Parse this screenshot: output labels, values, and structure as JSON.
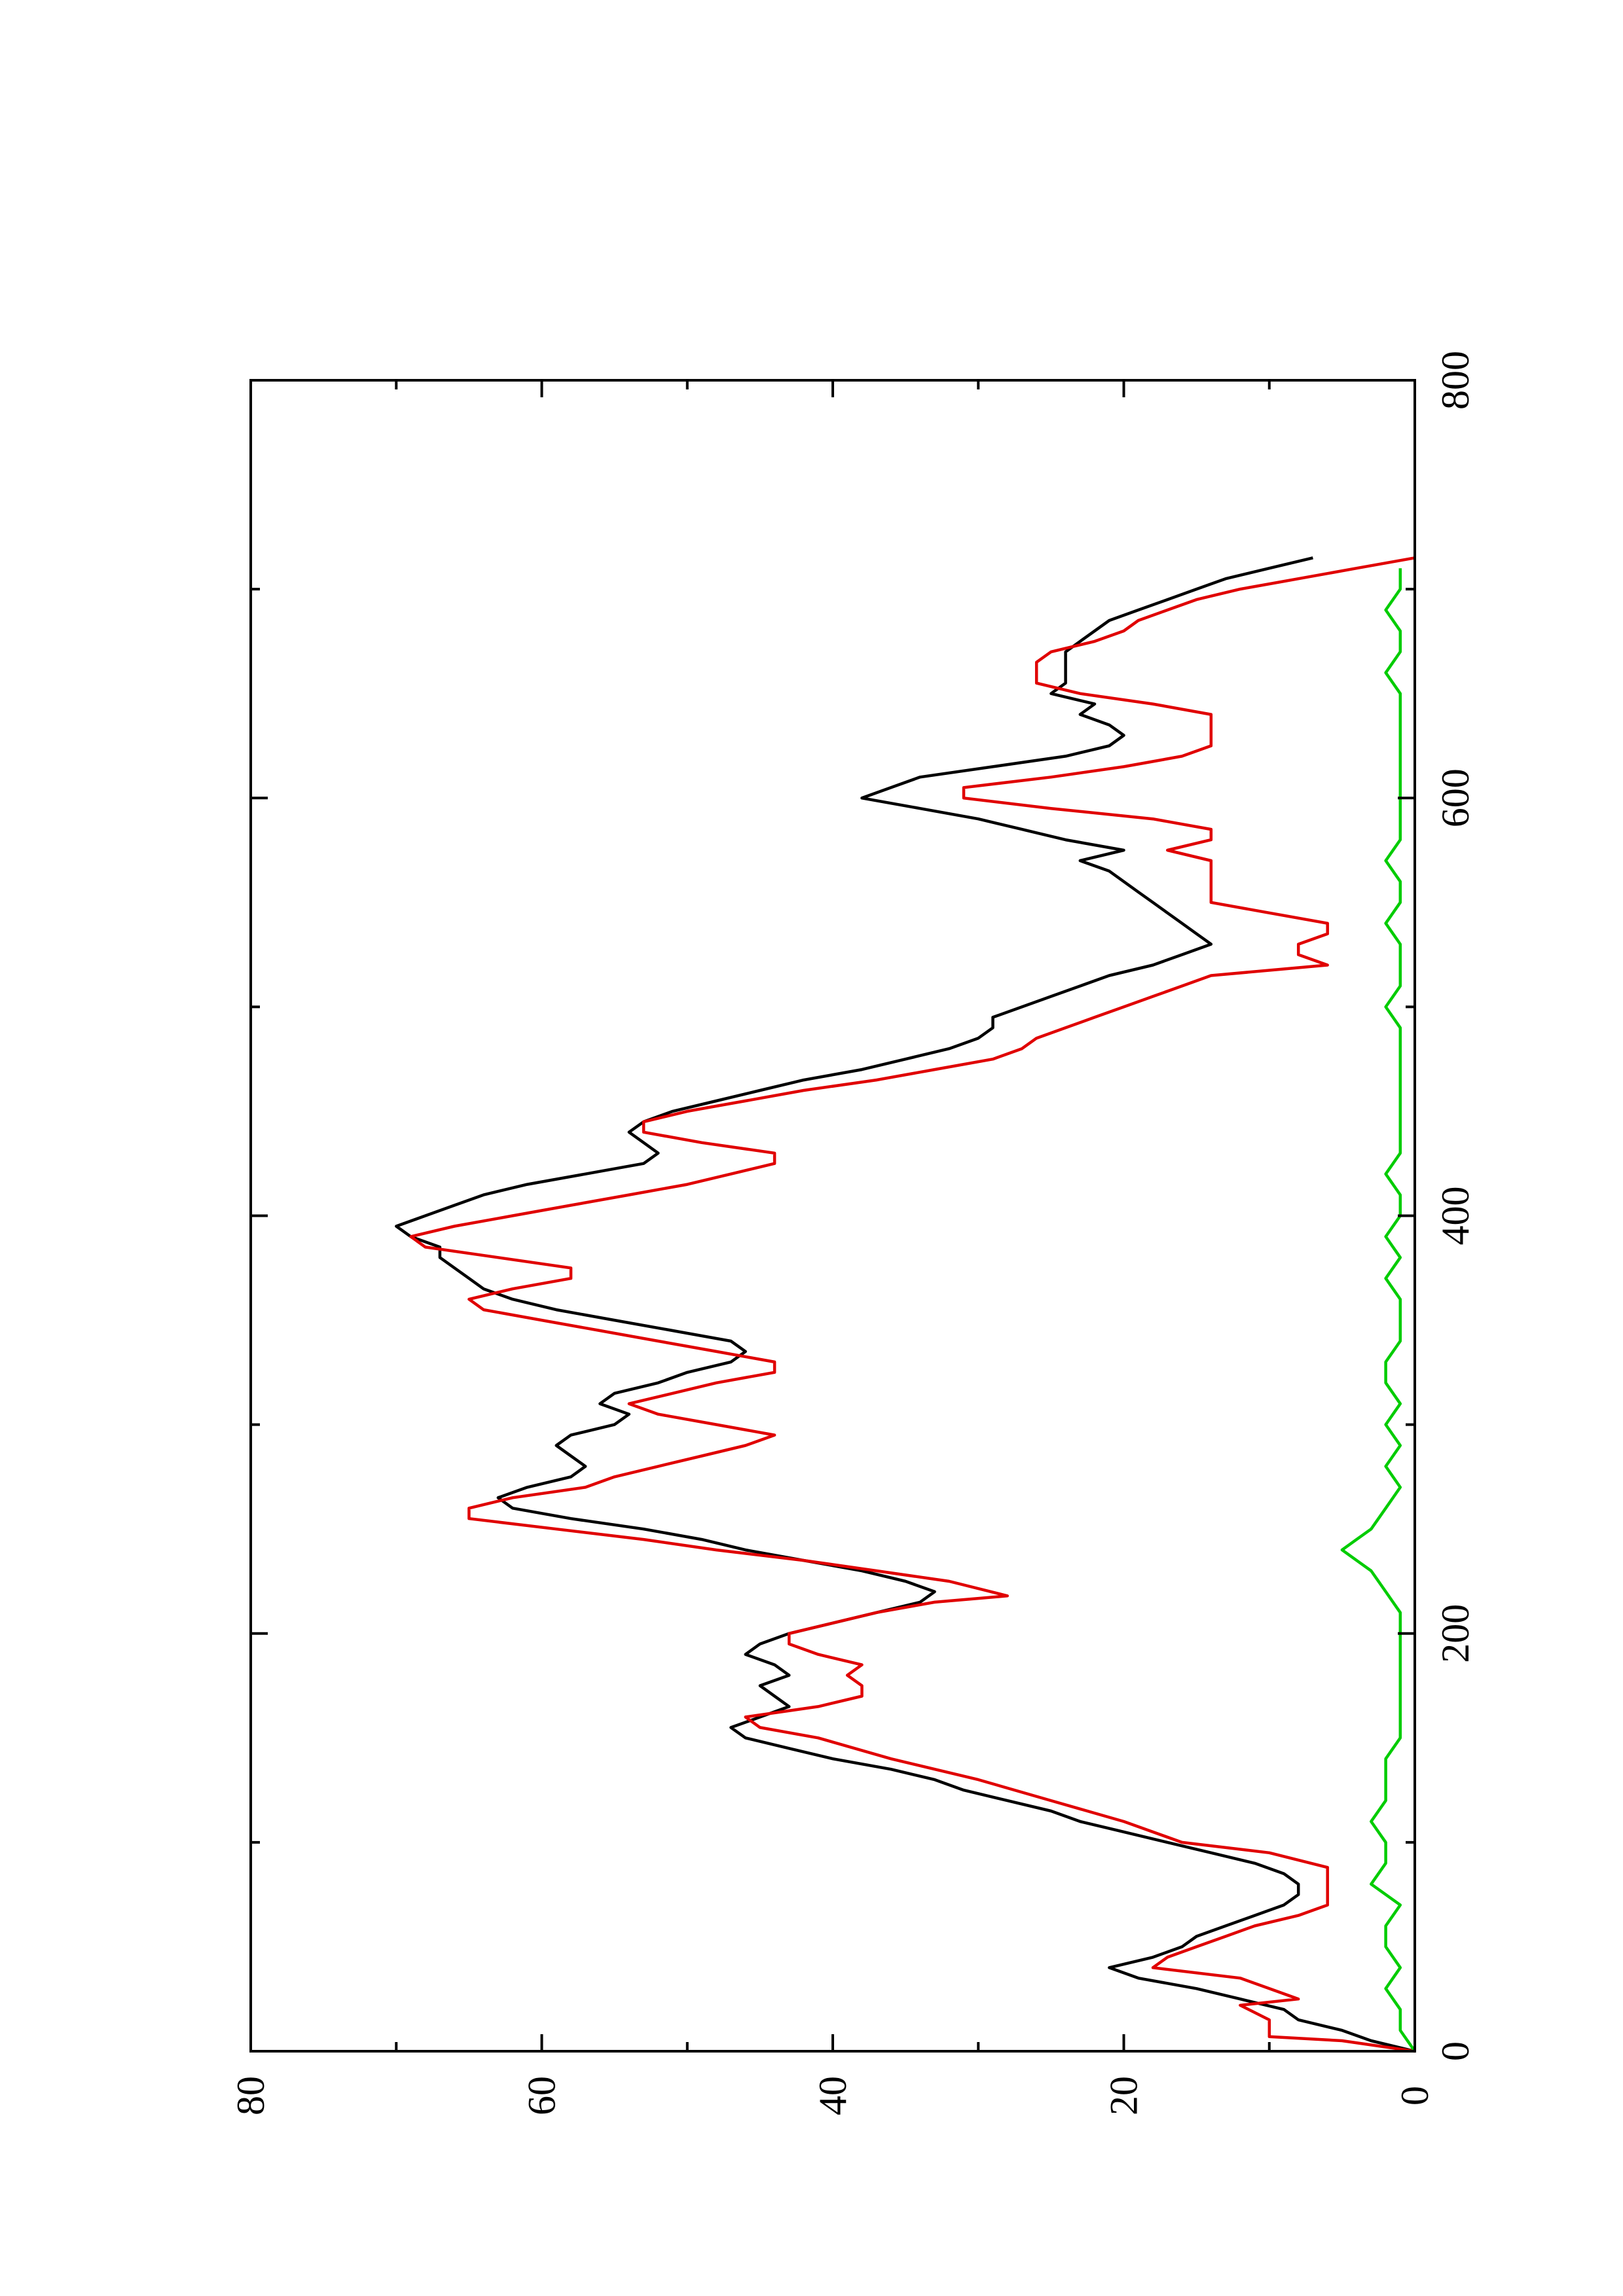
{
  "chart_data": {
    "type": "line",
    "orientation": "rotated-90-counterclockwise",
    "title": "",
    "xlabel": "",
    "ylabel": "",
    "xlim": [
      0,
      800
    ],
    "ylim": [
      0,
      80
    ],
    "x_ticks": [
      0,
      200,
      400,
      600,
      800
    ],
    "x_minor_ticks": [
      100,
      300,
      500,
      700
    ],
    "y_ticks": [
      0,
      20,
      40,
      60,
      80
    ],
    "y_minor_ticks": [
      10,
      30,
      50,
      70
    ],
    "x_tick_labels": [
      "0",
      "200",
      "400",
      "600",
      "800"
    ],
    "y_tick_labels": [
      "0",
      "20",
      "40",
      "60",
      "80"
    ],
    "grid": false,
    "legend": "none",
    "series": [
      {
        "color": "#000000",
        "x": [
          0,
          5,
          10,
          15,
          20,
          25,
          30,
          35,
          40,
          45,
          50,
          55,
          60,
          65,
          70,
          75,
          80,
          85,
          90,
          95,
          100,
          105,
          110,
          115,
          120,
          125,
          130,
          135,
          140,
          145,
          150,
          155,
          160,
          165,
          170,
          175,
          180,
          185,
          190,
          195,
          200,
          205,
          210,
          215,
          220,
          225,
          230,
          235,
          240,
          245,
          250,
          255,
          260,
          265,
          270,
          275,
          280,
          285,
          290,
          295,
          300,
          305,
          310,
          315,
          320,
          325,
          330,
          335,
          340,
          345,
          350,
          355,
          360,
          365,
          370,
          375,
          380,
          385,
          390,
          395,
          400,
          405,
          410,
          415,
          420,
          425,
          430,
          435,
          440,
          445,
          450,
          455,
          460,
          465,
          470,
          475,
          480,
          485,
          490,
          495,
          500,
          505,
          510,
          515,
          520,
          525,
          530,
          535,
          540,
          545,
          550,
          555,
          560,
          565,
          570,
          575,
          580,
          585,
          590,
          595,
          600,
          605,
          610,
          615,
          620,
          625,
          630,
          635,
          640,
          645,
          650,
          655,
          660,
          665,
          670,
          675,
          680,
          685,
          690,
          695,
          700,
          705,
          710,
          715
        ],
        "y": [
          0,
          3,
          5,
          8,
          9,
          12,
          15,
          19,
          21,
          18,
          16,
          15,
          13,
          11,
          9,
          8,
          8,
          9,
          11,
          14,
          17,
          20,
          23,
          25,
          28,
          31,
          33,
          36,
          40,
          43,
          46,
          47,
          45,
          43,
          44,
          45,
          43,
          44,
          46,
          45,
          43,
          40,
          37,
          34,
          33,
          35,
          38,
          42,
          46,
          49,
          53,
          58,
          62,
          63,
          61,
          58,
          57,
          58,
          59,
          58,
          55,
          54,
          56,
          55,
          52,
          50,
          47,
          46,
          47,
          51,
          55,
          59,
          62,
          64,
          65,
          66,
          67,
          67,
          69,
          70,
          68,
          66,
          64,
          61,
          57,
          53,
          52,
          53,
          54,
          53,
          51,
          48,
          45,
          42,
          38,
          35,
          32,
          30,
          29,
          29,
          27,
          25,
          23,
          21,
          18,
          16,
          14,
          15,
          16,
          17,
          18,
          19,
          20,
          21,
          23,
          20,
          24,
          27,
          30,
          34,
          38,
          36,
          34,
          29,
          24,
          21,
          20,
          21,
          23,
          22,
          25,
          24,
          24,
          24,
          24,
          23,
          22,
          21,
          19,
          17,
          15,
          13,
          10,
          7
        ]
      },
      {
        "color": "#e00000",
        "x": [
          0,
          5,
          7,
          15,
          22,
          25,
          30,
          35,
          40,
          45,
          50,
          55,
          60,
          65,
          70,
          75,
          80,
          85,
          88,
          95,
          100,
          110,
          120,
          130,
          140,
          150,
          155,
          160,
          165,
          170,
          175,
          180,
          185,
          190,
          195,
          200,
          205,
          210,
          215,
          218,
          225,
          230,
          235,
          240,
          245,
          250,
          255,
          260,
          265,
          270,
          275,
          280,
          285,
          290,
          295,
          300,
          305,
          310,
          315,
          320,
          325,
          330,
          335,
          340,
          345,
          350,
          355,
          360,
          365,
          370,
          375,
          380,
          385,
          390,
          395,
          400,
          405,
          410,
          415,
          420,
          425,
          430,
          435,
          440,
          445,
          450,
          455,
          460,
          465,
          470,
          475,
          480,
          485,
          490,
          495,
          500,
          505,
          510,
          515,
          520,
          525,
          530,
          535,
          540,
          545,
          550,
          555,
          560,
          565,
          570,
          575,
          580,
          585,
          590,
          595,
          600,
          605,
          610,
          615,
          620,
          625,
          630,
          635,
          640,
          645,
          650,
          655,
          660,
          665,
          670,
          675,
          680,
          685,
          690,
          695,
          700,
          705,
          710,
          715
        ],
        "y": [
          0,
          5,
          10,
          10,
          12,
          8,
          10,
          12,
          18,
          17,
          15,
          13,
          11,
          8,
          6,
          6,
          6,
          6,
          6,
          10,
          16,
          20,
          25,
          30,
          36,
          41,
          45,
          46,
          41,
          38,
          38,
          39,
          38,
          41,
          43,
          43,
          40,
          37,
          33,
          28,
          32,
          37,
          42,
          48,
          53,
          59,
          65,
          65,
          62,
          57,
          55,
          52,
          49,
          46,
          44,
          48,
          52,
          54,
          51,
          48,
          44,
          44,
          48,
          52,
          56,
          60,
          64,
          65,
          62,
          58,
          58,
          63,
          68,
          69,
          66,
          62,
          58,
          54,
          50,
          47,
          44,
          44,
          49,
          53,
          53,
          50,
          46,
          42,
          37,
          33,
          29,
          27,
          26,
          24,
          22,
          20,
          18,
          16,
          14,
          6,
          8,
          8,
          6,
          6,
          10,
          14,
          14,
          14,
          14,
          14,
          17,
          14,
          14,
          18,
          25,
          31,
          31,
          25,
          20,
          16,
          14,
          14,
          14,
          14,
          18,
          23,
          26,
          26,
          26,
          25,
          22,
          20,
          19,
          17,
          15,
          12,
          8,
          4,
          0
        ]
      },
      {
        "color": "#00cc00",
        "x": [
          0,
          10,
          20,
          30,
          40,
          50,
          60,
          70,
          80,
          90,
          100,
          110,
          120,
          130,
          140,
          150,
          160,
          170,
          180,
          190,
          200,
          210,
          220,
          230,
          235,
          240,
          245,
          250,
          260,
          270,
          280,
          290,
          300,
          310,
          320,
          330,
          340,
          350,
          360,
          370,
          380,
          390,
          400,
          410,
          420,
          430,
          440,
          450,
          460,
          470,
          480,
          490,
          500,
          510,
          520,
          530,
          540,
          550,
          560,
          570,
          580,
          590,
          600,
          610,
          620,
          630,
          640,
          650,
          660,
          670,
          680,
          690,
          700,
          710
        ],
        "y": [
          0,
          1,
          1,
          2,
          1,
          2,
          2,
          1,
          3,
          2,
          2,
          3,
          2,
          2,
          2,
          1,
          1,
          1,
          1,
          1,
          1,
          1,
          2,
          3,
          4,
          5,
          4,
          3,
          2,
          1,
          2,
          1,
          2,
          1,
          2,
          2,
          1,
          1,
          1,
          2,
          1,
          2,
          1,
          1,
          2,
          1,
          1,
          1,
          1,
          1,
          1,
          1,
          2,
          1,
          1,
          1,
          2,
          1,
          1,
          2,
          1,
          1,
          1,
          1,
          1,
          1,
          1,
          1,
          2,
          1,
          1,
          2,
          1,
          1
        ]
      }
    ]
  }
}
